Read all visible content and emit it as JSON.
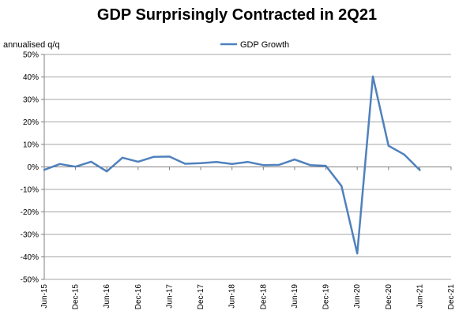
{
  "chart_data": {
    "type": "line",
    "title": "GDP Surprisingly Contracted in 2Q21",
    "ylabel": "annualised q/q",
    "xlabel": "",
    "ylim": [
      -50,
      50
    ],
    "y_ticks": [
      "50%",
      "40%",
      "30%",
      "20%",
      "10%",
      "0%",
      "-10%",
      "-20%",
      "-30%",
      "-40%",
      "-50%"
    ],
    "y_tick_values": [
      50,
      40,
      30,
      20,
      10,
      0,
      -10,
      -20,
      -30,
      -40,
      -50
    ],
    "x_labels": [
      "Jun-15",
      "Dec-15",
      "Jun-16",
      "Dec-16",
      "Jun-17",
      "Dec-17",
      "Jun-18",
      "Dec-18",
      "Jun-19",
      "Dec-19",
      "Jun-20",
      "Dec-20",
      "Jun-21",
      "Dec-21"
    ],
    "grid": true,
    "legend_position": "top-center",
    "series": [
      {
        "name": "GDP Growth",
        "color": "#4f81bd",
        "x": [
          "Jun-15",
          "Sep-15",
          "Dec-15",
          "Mar-16",
          "Jun-16",
          "Sep-16",
          "Dec-16",
          "Mar-17",
          "Jun-17",
          "Sep-17",
          "Dec-17",
          "Mar-18",
          "Jun-18",
          "Sep-18",
          "Dec-18",
          "Mar-19",
          "Jun-19",
          "Sep-19",
          "Dec-19",
          "Mar-20",
          "Jun-20",
          "Sep-20",
          "Dec-20",
          "Mar-21",
          "Jun-21"
        ],
        "values": [
          -1.3,
          1.3,
          0.1,
          2.3,
          -2.0,
          4.1,
          2.3,
          4.5,
          4.6,
          1.4,
          1.7,
          2.2,
          1.3,
          2.2,
          0.8,
          0.9,
          3.3,
          0.8,
          0.5,
          -8.5,
          -38.5,
          40.2,
          9.4,
          5.5,
          -1.4
        ]
      }
    ]
  }
}
